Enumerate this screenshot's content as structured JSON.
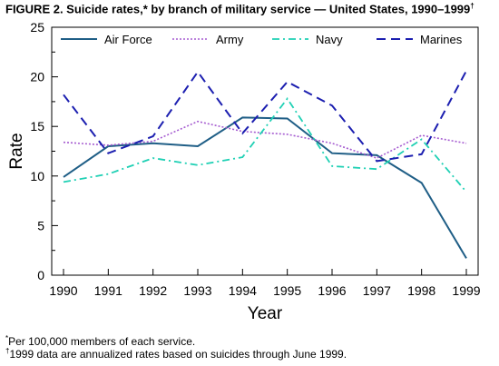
{
  "title": {
    "main": "FIGURE 2. Suicide rates,* by branch of military service — United States, 1990–1999",
    "dagger": "†"
  },
  "footnotes": {
    "star_mark": "*",
    "star_text": "Per 100,000 members of each service.",
    "dagger_mark": "†",
    "dagger_text": "1999 data are annualized rates based on suicides through June 1999."
  },
  "chart_data": {
    "type": "line",
    "x": [
      "1990",
      "1991",
      "1992",
      "1993",
      "1994",
      "1995",
      "1996",
      "1997",
      "1998",
      "1999"
    ],
    "xlabel": "Year",
    "ylabel": "Rate",
    "ylim": [
      0,
      25
    ],
    "yticks": [
      0,
      5,
      10,
      15,
      20,
      25
    ],
    "grid": false,
    "legend_position": "top",
    "series": [
      {
        "name": "Air Force",
        "color": "#1f5e86",
        "style": "solid",
        "values": [
          9.9,
          13.0,
          13.3,
          13.0,
          15.9,
          15.8,
          12.3,
          12.1,
          9.3,
          1.7
        ]
      },
      {
        "name": "Army",
        "color": "#a55bd0",
        "style": "dotted",
        "values": [
          13.4,
          13.1,
          13.5,
          15.5,
          14.5,
          14.2,
          13.3,
          11.8,
          14.1,
          13.3
        ]
      },
      {
        "name": "Navy",
        "color": "#1fd0b4",
        "style": "dashdot",
        "values": [
          9.4,
          10.2,
          11.8,
          11.1,
          11.9,
          17.8,
          11.0,
          10.7,
          13.7,
          8.4
        ]
      },
      {
        "name": "Marines",
        "color": "#1c1fb0",
        "style": "dashed",
        "values": [
          18.2,
          12.3,
          14.0,
          20.5,
          14.3,
          19.5,
          17.1,
          11.5,
          12.2,
          20.6
        ]
      }
    ]
  }
}
